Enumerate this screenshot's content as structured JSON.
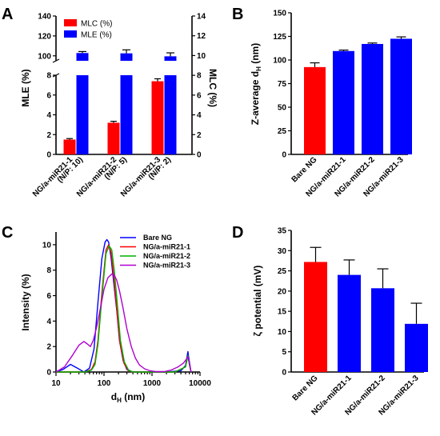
{
  "chart_data": [
    {
      "panel": "A",
      "type": "bar",
      "categories": [
        [
          "NG/a-miR21-1",
          "(N/P: 10)"
        ],
        [
          "NG/a-miR21-2",
          "(N/P: 5)"
        ],
        [
          "NG/a-miR21-3",
          "(N/P: 2)"
        ]
      ],
      "series": [
        {
          "name": "MLC (%)",
          "axis": "right",
          "color": "#ff0000",
          "values": [
            1.5,
            3.2,
            7.4
          ],
          "errors": [
            0.1,
            0.15,
            0.25
          ]
        },
        {
          "name": "MLE (%)",
          "axis": "left",
          "color": "#0000ff",
          "values": [
            102.8,
            102.5,
            99.5
          ],
          "errors": [
            1.5,
            3.5,
            3.5
          ]
        }
      ],
      "ylabel_left": "MLE (%)",
      "ylabel_right": "MLC (%)",
      "left_axis_lower": {
        "ylim": [
          0,
          8
        ],
        "ticks": [
          0,
          2,
          4,
          6,
          8
        ]
      },
      "left_axis_upper": {
        "ylim": [
          95,
          140
        ],
        "ticks": [
          100,
          120,
          140
        ]
      },
      "right_axis": {
        "ylim": [
          0,
          14
        ],
        "ticks": [
          0,
          2,
          4,
          6,
          8,
          10,
          12,
          14
        ]
      }
    },
    {
      "panel": "B",
      "type": "bar",
      "categories": [
        "Bare NG",
        "NG/a-miR21-1",
        "NG/a-miR21-2",
        "NG/a-miR21-3"
      ],
      "values": [
        92.5,
        109.5,
        117,
        122.5
      ],
      "errors": [
        4.5,
        1.0,
        1.0,
        2.0
      ],
      "colors": [
        "#ff0000",
        "#0000ff",
        "#0000ff",
        "#0000ff"
      ],
      "ylabel": "Z-average d",
      "ylabel_sub": "H",
      "ylabel_unit": " (nm)",
      "ylim": [
        0,
        150
      ],
      "yticks": [
        0,
        25,
        50,
        75,
        100,
        125,
        150
      ]
    },
    {
      "panel": "C",
      "type": "line",
      "x_scale": "log",
      "xlim": [
        10,
        10000
      ],
      "xticks": [
        10,
        100,
        1000,
        10000
      ],
      "ylim": [
        0,
        11
      ],
      "yticks": [
        0,
        2,
        4,
        6,
        8,
        10
      ],
      "xlabel": "d",
      "xlabel_sub": "H",
      "xlabel_unit": " (nm)",
      "ylabel": "Intensity (%)",
      "legend_position": "top-right",
      "series": [
        {
          "name": "Bare NG",
          "color": "#0000ff",
          "x": [
            10,
            14,
            20,
            28,
            38,
            50,
            62,
            75,
            90,
            105,
            115,
            125,
            140,
            160,
            185,
            210,
            250,
            300,
            400,
            500,
            700,
            1000,
            2000,
            4000,
            5000,
            5600,
            6000,
            6500
          ],
          "y": [
            0,
            0.2,
            0.6,
            0.3,
            0,
            0.3,
            1.8,
            5.5,
            8.9,
            10.2,
            10.4,
            10.2,
            9,
            7,
            4.8,
            2.5,
            0.9,
            0.2,
            0,
            0,
            0,
            0,
            0,
            0.1,
            0.5,
            1.6,
            0.8,
            0
          ]
        },
        {
          "name": "NG/a-miR21-1",
          "color": "#ff0000",
          "x": [
            10,
            40,
            55,
            65,
            75,
            90,
            110,
            125,
            140,
            160,
            185,
            215,
            260,
            320,
            400,
            600,
            1000,
            3000,
            5000,
            5600,
            6000,
            6500
          ],
          "y": [
            0,
            0,
            0.2,
            0.8,
            2.5,
            6.2,
            9.6,
            10,
            9.4,
            7.5,
            4.9,
            2.3,
            0.7,
            0.1,
            0,
            0,
            0,
            0,
            0.4,
            1.3,
            0.6,
            0
          ]
        },
        {
          "name": "NG/a-miR21-2",
          "color": "#00b000",
          "x": [
            10,
            40,
            55,
            65,
            75,
            90,
            110,
            128,
            145,
            165,
            190,
            220,
            265,
            330,
            420,
            600,
            1000,
            3000,
            5000,
            5600,
            6000,
            6500
          ],
          "y": [
            0,
            0,
            0.15,
            0.6,
            2.2,
            5.8,
            9.3,
            9.9,
            9.6,
            7.9,
            5.3,
            2.5,
            0.8,
            0.1,
            0,
            0,
            0,
            0,
            0.4,
            1.3,
            0.6,
            0
          ]
        },
        {
          "name": "NG/a-miR21-3",
          "color": "#b000d0",
          "x": [
            10,
            15,
            22,
            30,
            38,
            45,
            52,
            60,
            70,
            85,
            100,
            120,
            145,
            165,
            185,
            210,
            250,
            300,
            370,
            450,
            550,
            700,
            900,
            1200,
            1800,
            2500,
            3500,
            4500,
            5200,
            5600,
            6000,
            6500
          ],
          "y": [
            0,
            0.4,
            1.3,
            2.1,
            2.4,
            2.2,
            2,
            2.5,
            3.5,
            5.1,
            6.5,
            7.4,
            7.7,
            7.6,
            7.2,
            6.4,
            5,
            3.4,
            2,
            1.1,
            0.55,
            0.25,
            0.1,
            0.03,
            0.03,
            0.15,
            0.4,
            0.7,
            1,
            1.2,
            0.7,
            0
          ]
        }
      ]
    },
    {
      "panel": "D",
      "type": "bar",
      "categories": [
        "Bare NG",
        "NG/a-miR21-1",
        "NG/a-miR21-2",
        "NG/a-miR21-3"
      ],
      "values": [
        27.2,
        24.0,
        20.7,
        11.9
      ],
      "errors": [
        3.6,
        3.7,
        4.8,
        5.1
      ],
      "colors": [
        "#ff0000",
        "#0000ff",
        "#0000ff",
        "#0000ff"
      ],
      "ylabel": "ζ potential (mV)",
      "ylim": [
        0,
        35
      ],
      "yticks": [
        0,
        5,
        10,
        15,
        20,
        25,
        30,
        35
      ]
    }
  ],
  "panel_labels": [
    "A",
    "B",
    "C",
    "D"
  ]
}
